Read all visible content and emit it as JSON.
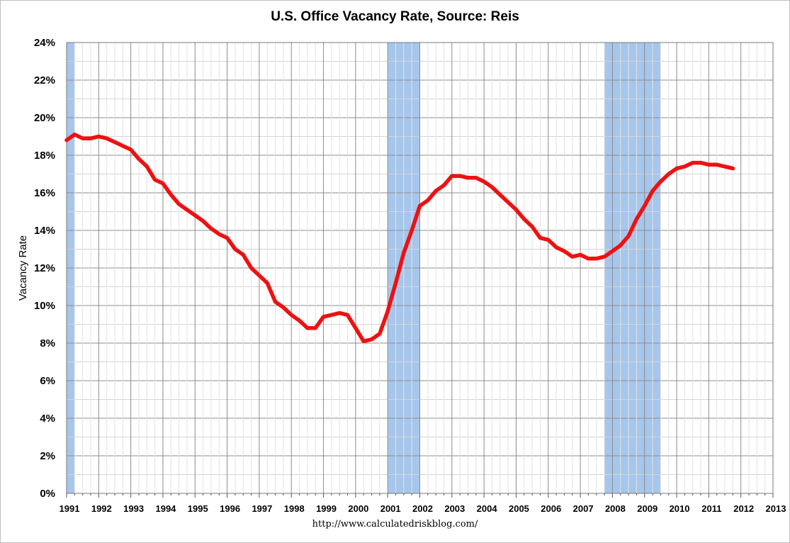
{
  "chart_data": {
    "type": "line",
    "title": "U.S. Office Vacancy Rate, Source: Reis",
    "ylabel": "Vacancy Rate",
    "xlabel": "",
    "xlim": [
      1991,
      2013
    ],
    "ylim": [
      0,
      24
    ],
    "y_ticks": [
      "0%",
      "2%",
      "4%",
      "6%",
      "8%",
      "10%",
      "12%",
      "14%",
      "16%",
      "18%",
      "20%",
      "22%",
      "24%"
    ],
    "x_ticks": [
      "1991",
      "1992",
      "1993",
      "1994",
      "1995",
      "1996",
      "1997",
      "1998",
      "1999",
      "2000",
      "2001",
      "2002",
      "2003",
      "2004",
      "2005",
      "2006",
      "2007",
      "2008",
      "2009",
      "2010",
      "2011",
      "2012",
      "2013"
    ],
    "grid": true,
    "legend": "none",
    "recessions": [
      {
        "start": 1991.0,
        "end": 1991.25
      },
      {
        "start": 2001.0,
        "end": 2002.0
      },
      {
        "start": 2007.75,
        "end": 2009.5
      }
    ],
    "series": [
      {
        "color": "#ee1111",
        "points": [
          [
            1991.0,
            18.8
          ],
          [
            1991.25,
            19.1
          ],
          [
            1991.5,
            18.9
          ],
          [
            1991.75,
            18.9
          ],
          [
            1992.0,
            19.0
          ],
          [
            1992.25,
            18.9
          ],
          [
            1992.5,
            18.7
          ],
          [
            1992.75,
            18.5
          ],
          [
            1993.0,
            18.3
          ],
          [
            1993.25,
            17.8
          ],
          [
            1993.5,
            17.4
          ],
          [
            1993.75,
            16.7
          ],
          [
            1994.0,
            16.5
          ],
          [
            1994.25,
            15.9
          ],
          [
            1994.5,
            15.4
          ],
          [
            1994.75,
            15.1
          ],
          [
            1995.0,
            14.8
          ],
          [
            1995.25,
            14.5
          ],
          [
            1995.5,
            14.1
          ],
          [
            1995.75,
            13.8
          ],
          [
            1996.0,
            13.6
          ],
          [
            1996.25,
            13.0
          ],
          [
            1996.5,
            12.7
          ],
          [
            1996.75,
            12.0
          ],
          [
            1997.0,
            11.6
          ],
          [
            1997.25,
            11.2
          ],
          [
            1997.5,
            10.2
          ],
          [
            1997.75,
            9.9
          ],
          [
            1998.0,
            9.5
          ],
          [
            1998.25,
            9.2
          ],
          [
            1998.5,
            8.8
          ],
          [
            1998.75,
            8.8
          ],
          [
            1999.0,
            9.4
          ],
          [
            1999.25,
            9.5
          ],
          [
            1999.5,
            9.6
          ],
          [
            1999.75,
            9.5
          ],
          [
            2000.0,
            8.8
          ],
          [
            2000.25,
            8.1
          ],
          [
            2000.5,
            8.2
          ],
          [
            2000.75,
            8.5
          ],
          [
            2001.0,
            9.7
          ],
          [
            2001.25,
            11.2
          ],
          [
            2001.5,
            12.8
          ],
          [
            2001.75,
            14.0
          ],
          [
            2002.0,
            15.3
          ],
          [
            2002.25,
            15.6
          ],
          [
            2002.5,
            16.1
          ],
          [
            2002.75,
            16.4
          ],
          [
            2003.0,
            16.9
          ],
          [
            2003.25,
            16.9
          ],
          [
            2003.5,
            16.8
          ],
          [
            2003.75,
            16.8
          ],
          [
            2004.0,
            16.6
          ],
          [
            2004.25,
            16.3
          ],
          [
            2004.5,
            15.9
          ],
          [
            2004.75,
            15.5
          ],
          [
            2005.0,
            15.1
          ],
          [
            2005.25,
            14.6
          ],
          [
            2005.5,
            14.2
          ],
          [
            2005.75,
            13.6
          ],
          [
            2006.0,
            13.5
          ],
          [
            2006.25,
            13.1
          ],
          [
            2006.5,
            12.9
          ],
          [
            2006.75,
            12.6
          ],
          [
            2007.0,
            12.7
          ],
          [
            2007.25,
            12.5
          ],
          [
            2007.5,
            12.5
          ],
          [
            2007.75,
            12.6
          ],
          [
            2008.0,
            12.9
          ],
          [
            2008.25,
            13.2
          ],
          [
            2008.5,
            13.7
          ],
          [
            2008.75,
            14.6
          ],
          [
            2009.0,
            15.3
          ],
          [
            2009.25,
            16.1
          ],
          [
            2009.5,
            16.6
          ],
          [
            2009.75,
            17.0
          ],
          [
            2010.0,
            17.3
          ],
          [
            2010.25,
            17.4
          ],
          [
            2010.5,
            17.6
          ],
          [
            2010.75,
            17.6
          ],
          [
            2011.0,
            17.5
          ],
          [
            2011.25,
            17.5
          ],
          [
            2011.5,
            17.4
          ],
          [
            2011.75,
            17.3
          ]
        ]
      }
    ]
  },
  "footer": {
    "source_url": "http://www.calculatedriskblog.com/"
  }
}
